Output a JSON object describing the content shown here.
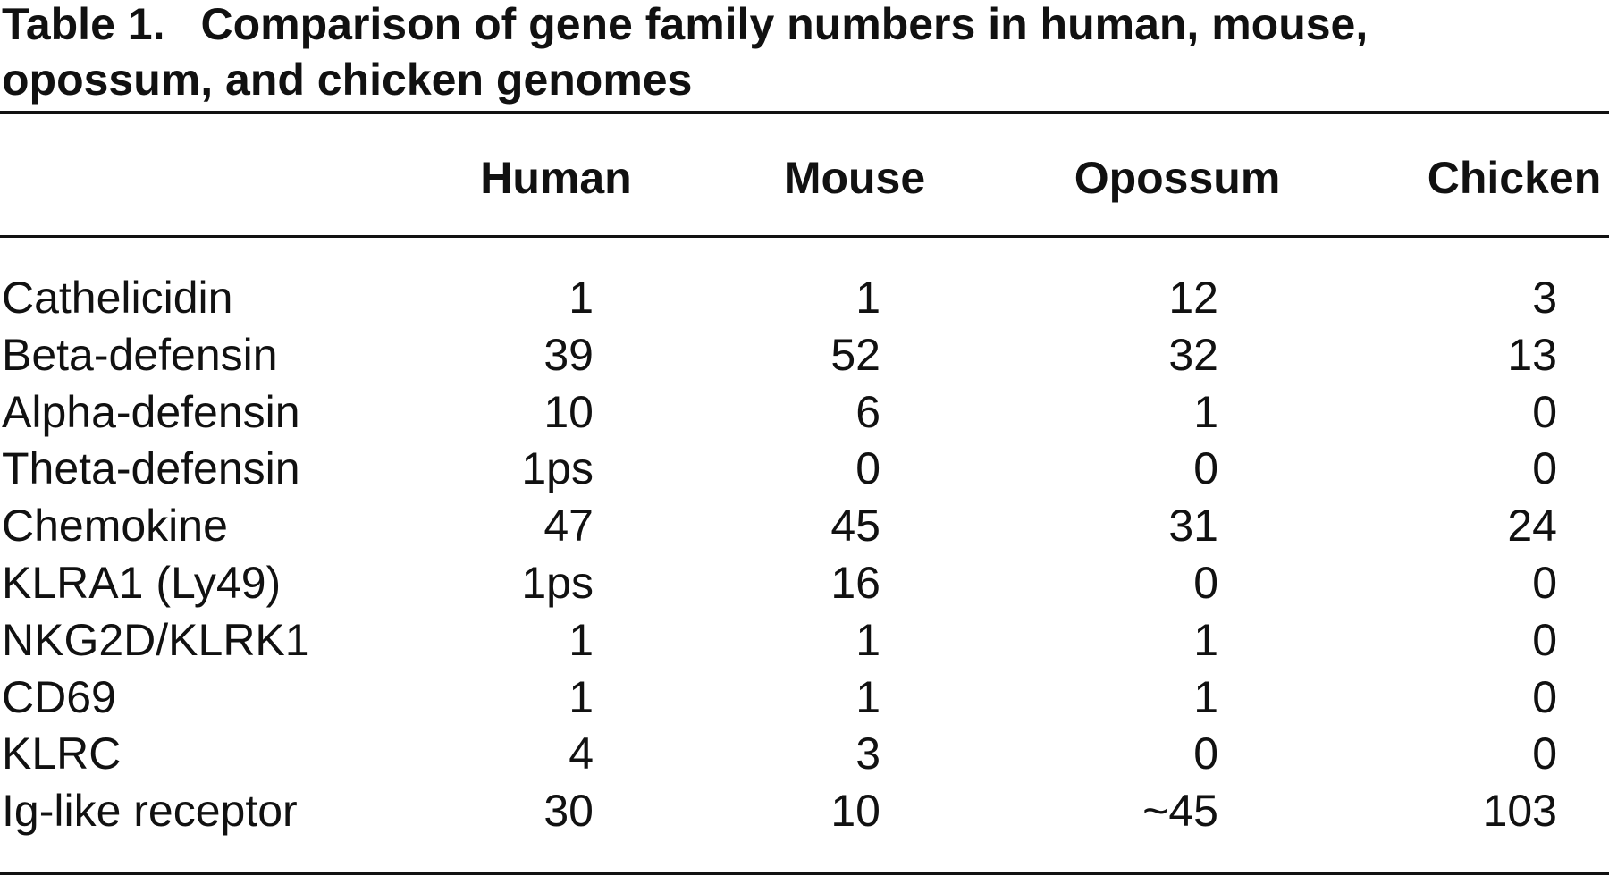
{
  "caption": {
    "label": "Table 1.",
    "title": "Comparison of gene family numbers in human, mouse, opossum, and chicken genomes"
  },
  "table": {
    "columns": [
      "Human",
      "Mouse",
      "Opossum",
      "Chicken"
    ],
    "rows": [
      [
        "Cathelicidin",
        1,
        1,
        12,
        3
      ],
      [
        "Beta-defensin",
        39,
        52,
        32,
        13
      ],
      [
        "Alpha-defensin",
        10,
        6,
        1,
        0
      ],
      [
        "Theta-defensin",
        "1ps",
        0,
        0,
        0
      ],
      [
        "Chemokine",
        47,
        45,
        31,
        24
      ],
      [
        "KLRA1 (Ly49)",
        "1ps",
        16,
        0,
        0
      ],
      [
        "NKG2D/KLRK1",
        1,
        1,
        1,
        0
      ],
      [
        "CD69",
        1,
        1,
        1,
        0
      ],
      [
        "KLRC",
        4,
        3,
        0,
        0
      ],
      [
        "Ig-like receptor",
        30,
        10,
        "~45",
        103
      ]
    ]
  }
}
